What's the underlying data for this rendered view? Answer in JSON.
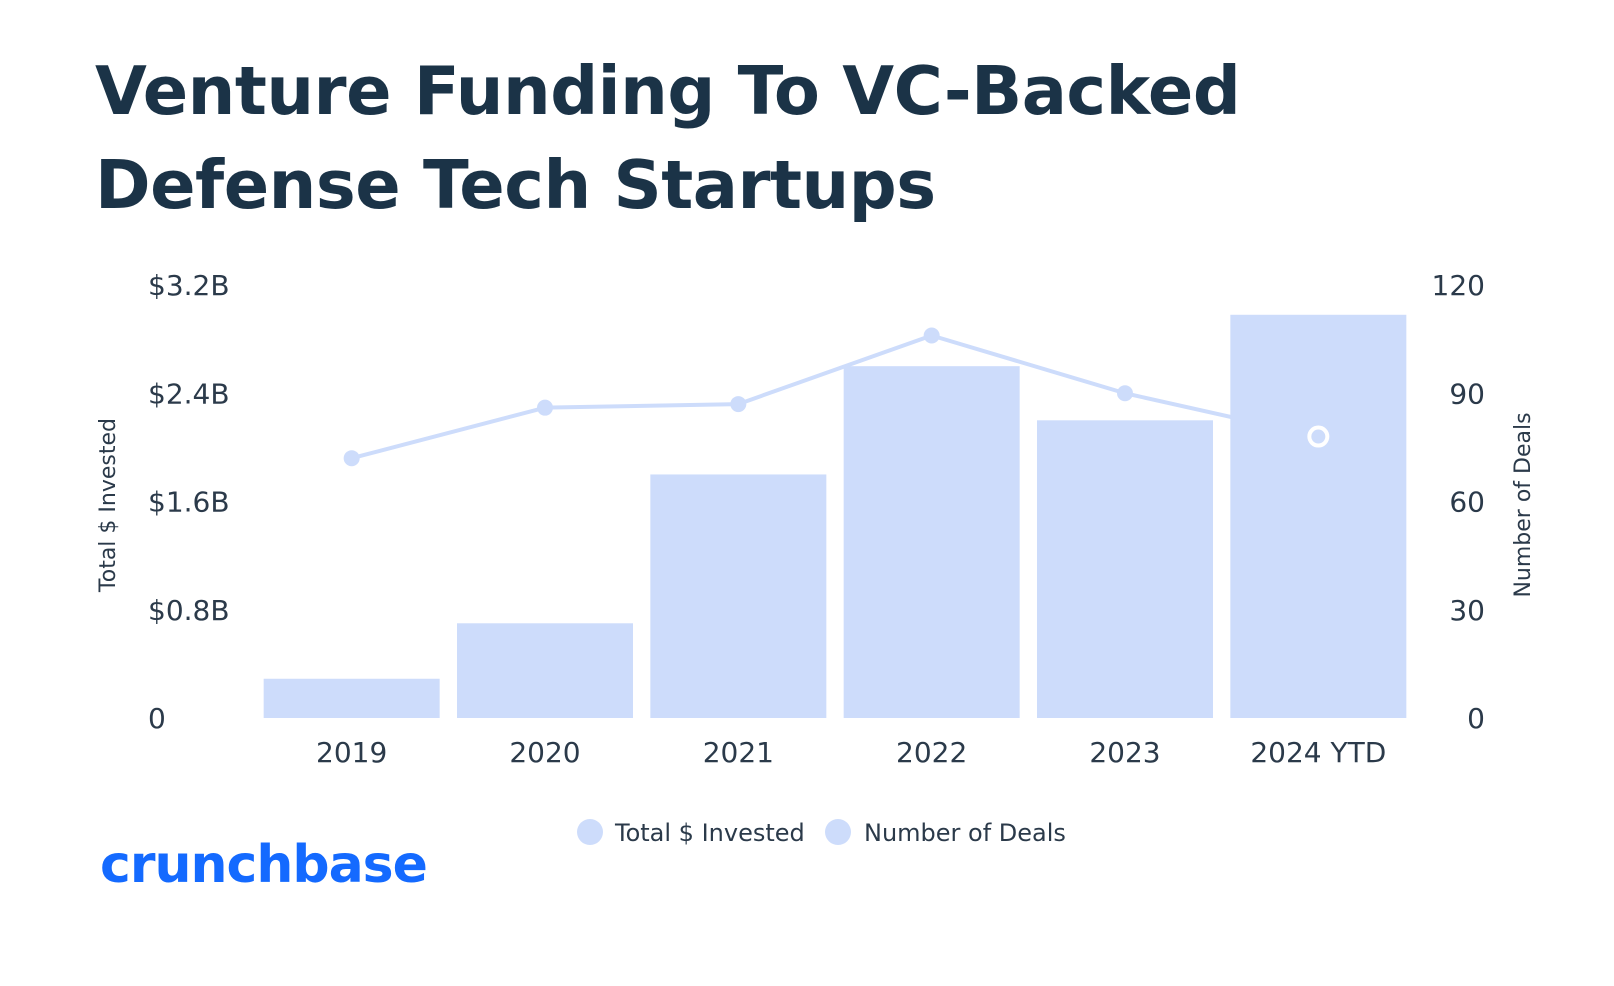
{
  "title": "Venture Funding To VC-Backed Defense Tech Startups",
  "logo_text": "crunchbase",
  "colors": {
    "bar": "#cddcfb",
    "line": "#cddcfb",
    "text": "#1b3347",
    "brand": "#146aff"
  },
  "chart_data": {
    "type": "bar",
    "categories": [
      "2019",
      "2020",
      "2021",
      "2022",
      "2023",
      "2024 YTD"
    ],
    "series": [
      {
        "name": "Total $ Invested",
        "type": "bar",
        "axis": "left",
        "values": [
          0.29,
          0.7,
          1.8,
          2.6,
          2.2,
          2.98
        ]
      },
      {
        "name": "Number of Deals",
        "type": "line",
        "axis": "right",
        "values": [
          72,
          86,
          87,
          106,
          90,
          78
        ]
      }
    ],
    "y_left": {
      "label": "Total $ Invested",
      "ylim": [
        0,
        3.2
      ],
      "ticks": [
        {
          "value": 0,
          "label": "0"
        },
        {
          "value": 0.8,
          "label": "$0.8B"
        },
        {
          "value": 1.6,
          "label": "$1.6B"
        },
        {
          "value": 2.4,
          "label": "$2.4B"
        },
        {
          "value": 3.2,
          "label": "$3.2B"
        }
      ]
    },
    "y_right": {
      "label": "Number of Deals",
      "ylim": [
        0,
        120
      ],
      "ticks": [
        {
          "value": 0,
          "label": "0"
        },
        {
          "value": 30,
          "label": "30"
        },
        {
          "value": 60,
          "label": "60"
        },
        {
          "value": 90,
          "label": "90"
        },
        {
          "value": 120,
          "label": "120"
        }
      ]
    },
    "legend": {
      "position": "bottom-center",
      "items": [
        "Total $ Invested",
        "Number of Deals"
      ]
    },
    "grid": false
  }
}
